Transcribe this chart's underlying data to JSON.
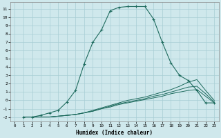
{
  "xlabel": "Humidex (Indice chaleur)",
  "background_color": "#cfe8ec",
  "grid_color": "#a8cdd4",
  "line_color": "#1e6b5e",
  "xlim": [
    -0.5,
    23.5
  ],
  "ylim": [
    -2.5,
    11.8
  ],
  "xticks": [
    0,
    1,
    2,
    3,
    4,
    5,
    6,
    7,
    8,
    9,
    10,
    11,
    12,
    13,
    14,
    15,
    16,
    17,
    18,
    19,
    20,
    21,
    22,
    23
  ],
  "yticks": [
    -2,
    -1,
    0,
    1,
    2,
    3,
    4,
    5,
    6,
    7,
    8,
    9,
    10,
    11
  ],
  "series": [
    {
      "x": [
        1,
        2,
        3,
        4,
        5,
        6,
        7,
        8,
        9,
        10,
        11,
        12,
        13,
        14,
        15,
        16,
        17,
        18,
        19,
        20,
        21,
        22,
        23
      ],
      "y": [
        -2.0,
        -2.0,
        -1.8,
        -1.5,
        -1.2,
        -0.2,
        1.2,
        4.4,
        7.0,
        8.5,
        10.8,
        11.2,
        11.3,
        11.3,
        11.3,
        9.8,
        7.0,
        4.5,
        3.0,
        2.4,
        1.2,
        -0.3,
        -0.3
      ],
      "marker": true
    },
    {
      "x": [
        1,
        2,
        3,
        4,
        5,
        6,
        7,
        8,
        9,
        10,
        11,
        12,
        13,
        14,
        15,
        16,
        17,
        18,
        19,
        20,
        21,
        22,
        23
      ],
      "y": [
        -2.0,
        -2.0,
        -2.0,
        -2.0,
        -1.9,
        -1.8,
        -1.7,
        -1.5,
        -1.3,
        -1.0,
        -0.8,
        -0.5,
        -0.3,
        -0.1,
        0.1,
        0.3,
        0.5,
        0.8,
        1.0,
        1.2,
        1.3,
        0.5,
        -0.3
      ],
      "marker": false
    },
    {
      "x": [
        1,
        2,
        3,
        4,
        5,
        6,
        7,
        8,
        9,
        10,
        11,
        12,
        13,
        14,
        15,
        16,
        17,
        18,
        19,
        20,
        21,
        22,
        23
      ],
      "y": [
        -2.0,
        -2.0,
        -2.0,
        -2.0,
        -1.9,
        -1.8,
        -1.7,
        -1.5,
        -1.3,
        -1.0,
        -0.7,
        -0.4,
        -0.2,
        0.0,
        0.2,
        0.5,
        0.7,
        1.0,
        1.3,
        1.6,
        1.7,
        0.8,
        -0.2
      ],
      "marker": false
    },
    {
      "x": [
        1,
        2,
        3,
        4,
        5,
        6,
        7,
        8,
        9,
        10,
        11,
        12,
        13,
        14,
        15,
        16,
        17,
        18,
        19,
        20,
        21,
        22,
        23
      ],
      "y": [
        -2.0,
        -2.0,
        -2.0,
        -2.0,
        -1.9,
        -1.8,
        -1.7,
        -1.5,
        -1.2,
        -0.9,
        -0.6,
        -0.3,
        0.0,
        0.2,
        0.4,
        0.7,
        1.0,
        1.3,
        1.7,
        2.2,
        2.5,
        1.2,
        0.0
      ],
      "marker": false
    }
  ]
}
